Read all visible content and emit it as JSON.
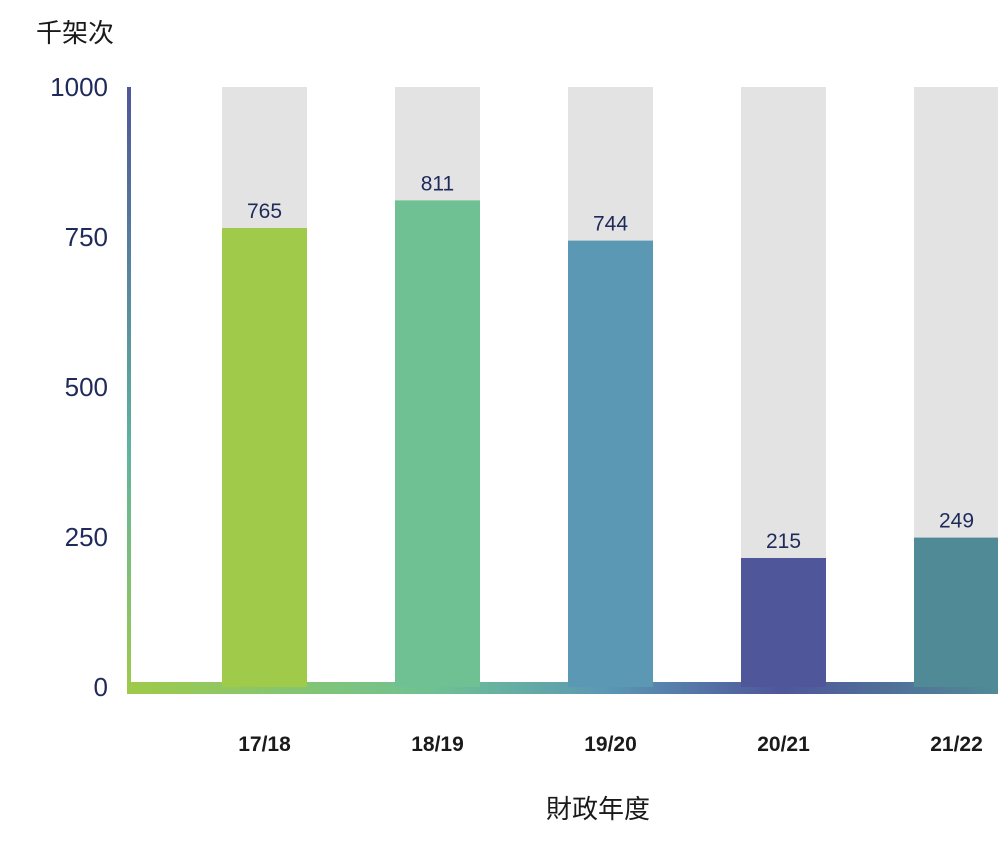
{
  "chart_data": {
    "type": "bar",
    "ylabel": "千架次",
    "xlabel": "財政年度",
    "categories": [
      "17/18",
      "18/19",
      "19/20",
      "20/21",
      "21/22"
    ],
    "values": [
      765,
      811,
      744,
      215,
      249
    ],
    "data_labels": [
      "765",
      "811",
      "744",
      "215",
      "249"
    ],
    "ylim": [
      0,
      1000
    ],
    "yticks": [
      0,
      250,
      500,
      750,
      1000
    ],
    "ytick_labels": [
      "0",
      "250",
      "500",
      "750",
      "1000"
    ],
    "background_bar_max": 1000,
    "bar_colors": [
      "#9fca4a",
      "#6fc193",
      "#5b98b4",
      "#4f569a",
      "#518a97"
    ],
    "background_bar_color": "#e3e3e3",
    "grid": false,
    "legend": "none"
  }
}
